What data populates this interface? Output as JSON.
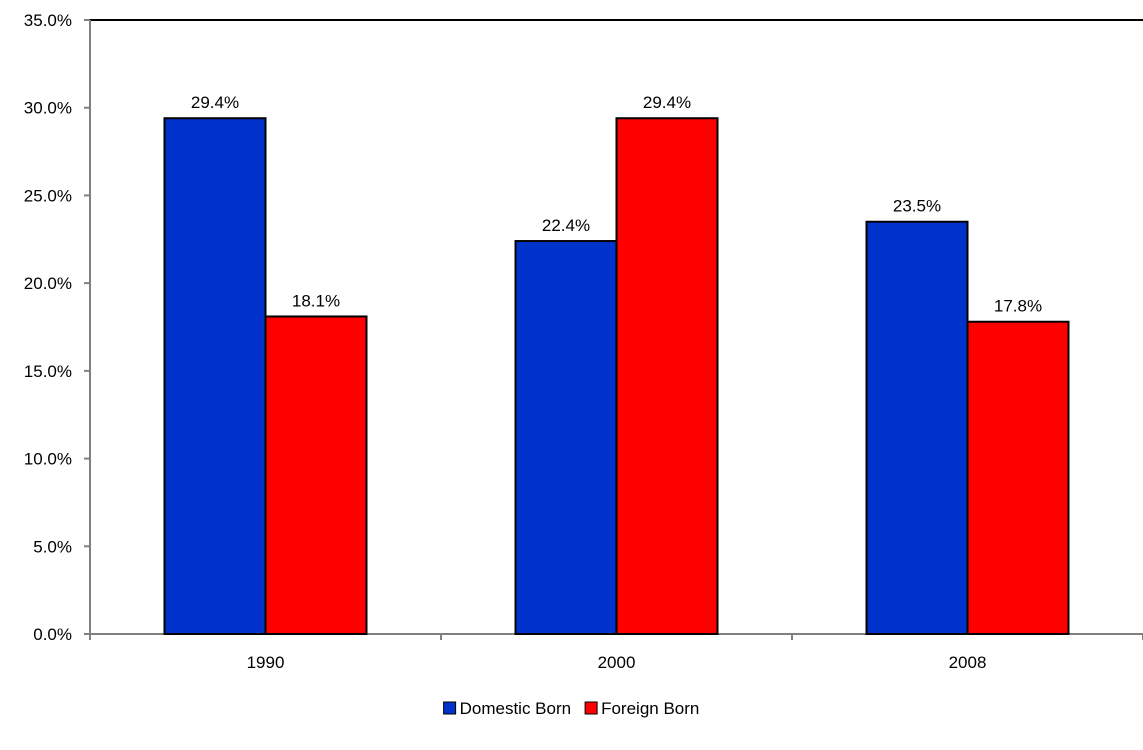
{
  "chart_data": {
    "type": "bar",
    "title": "",
    "xlabel": "",
    "ylabel": "",
    "categories": [
      "1990",
      "2000",
      "2008"
    ],
    "series": [
      {
        "name": "Domestic Born",
        "values": [
          29.4,
          22.4,
          23.5
        ],
        "color": "#0033CC"
      },
      {
        "name": "Foreign Born",
        "values": [
          18.1,
          29.4,
          17.8
        ],
        "color": "#FF0000"
      }
    ],
    "data_labels": [
      [
        "29.4%",
        "22.4%",
        "23.5%"
      ],
      [
        "18.1%",
        "29.4%",
        "17.8%"
      ]
    ],
    "ylim": [
      0,
      35
    ],
    "yticks": [
      0,
      5,
      10,
      15,
      20,
      25,
      30,
      35
    ],
    "ytick_labels": [
      "0.0%",
      "5.0%",
      "10.0%",
      "15.0%",
      "20.0%",
      "25.0%",
      "30.0%",
      "35.0%"
    ],
    "grid": false,
    "legend_position": "bottom",
    "colors": {
      "axis": "#808080",
      "frame_top": "#000000",
      "bar_outline": "#000000"
    }
  }
}
